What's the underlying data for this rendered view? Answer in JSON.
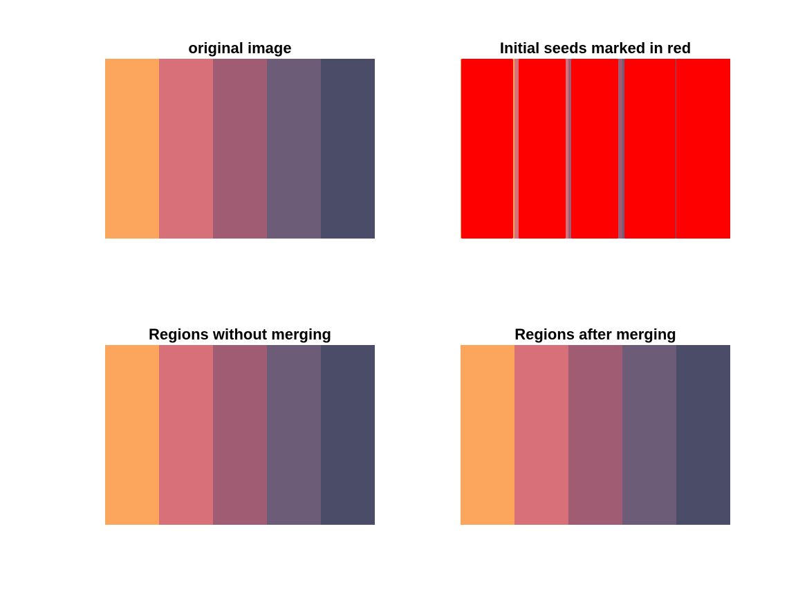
{
  "colors": {
    "stripes": [
      "#fca55c",
      "#d8707a",
      "#a05c72",
      "#6c5c78",
      "#4b4c68"
    ],
    "seed": "#ff0000"
  },
  "panels": {
    "original": {
      "title": "original image"
    },
    "seeds": {
      "title": "Initial seeds marked in red"
    },
    "no_merge": {
      "title": "Regions without merging"
    },
    "merged": {
      "title": "Regions after merging"
    }
  }
}
